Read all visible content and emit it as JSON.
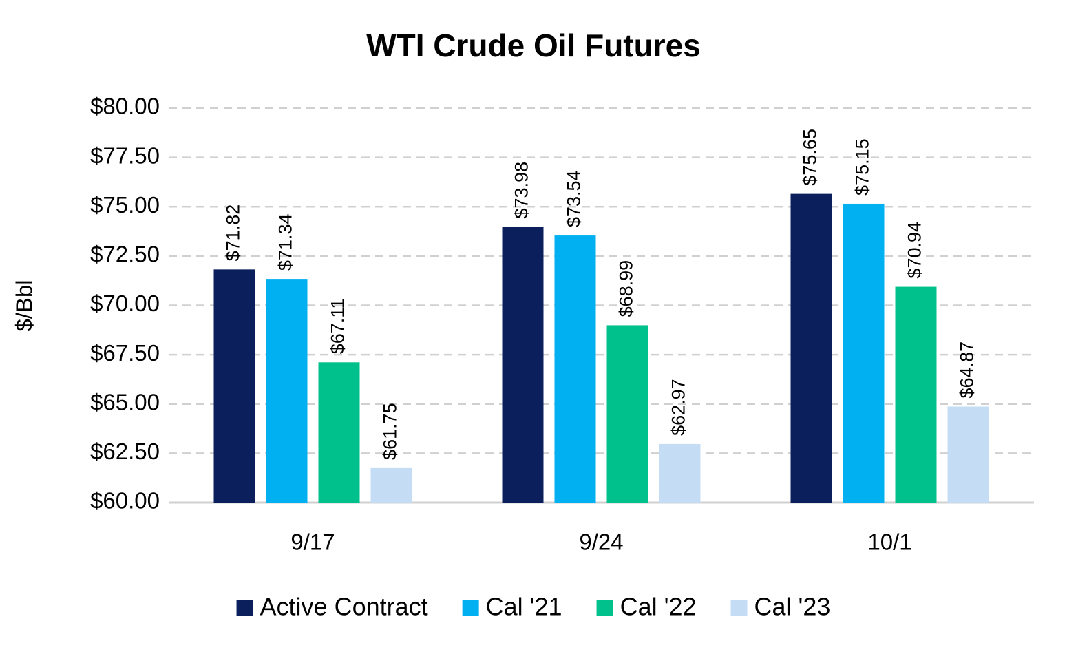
{
  "chart_data": {
    "type": "bar",
    "title": "WTI Crude Oil Futures",
    "y_label": "$/Bbl",
    "categories": [
      "9/17",
      "9/24",
      "10/1"
    ],
    "series": [
      {
        "name": "Active Contract",
        "color": "#0b1f5c",
        "values": [
          71.82,
          73.98,
          75.65
        ],
        "value_labels": [
          "$71.82",
          "$73.98",
          "$75.65"
        ]
      },
      {
        "name": "Cal '21",
        "color": "#00b0f0",
        "values": [
          71.34,
          73.54,
          75.15
        ],
        "value_labels": [
          "$71.34",
          "$73.54",
          "$75.15"
        ]
      },
      {
        "name": "Cal '22",
        "color": "#00c08b",
        "values": [
          67.11,
          68.99,
          70.94
        ],
        "value_labels": [
          "$67.11",
          "$68.99",
          "$70.94"
        ]
      },
      {
        "name": "Cal '23",
        "color": "#c5dcf5",
        "values": [
          61.75,
          62.97,
          64.87
        ],
        "value_labels": [
          "$61.75",
          "$62.97",
          "$64.87"
        ]
      }
    ],
    "ylim": [
      60,
      80
    ],
    "yticks": [
      {
        "value": 60,
        "label": "$60.00"
      },
      {
        "value": 62.5,
        "label": "$62.50"
      },
      {
        "value": 65,
        "label": "$65.00"
      },
      {
        "value": 67.5,
        "label": "$67.50"
      },
      {
        "value": 70,
        "label": "$70.00"
      },
      {
        "value": 72.5,
        "label": "$72.50"
      },
      {
        "value": 75,
        "label": "$75.00"
      },
      {
        "value": 77.5,
        "label": "$77.50"
      },
      {
        "value": 80,
        "label": "$80.00"
      }
    ],
    "grid": true,
    "legend": "bottom"
  }
}
